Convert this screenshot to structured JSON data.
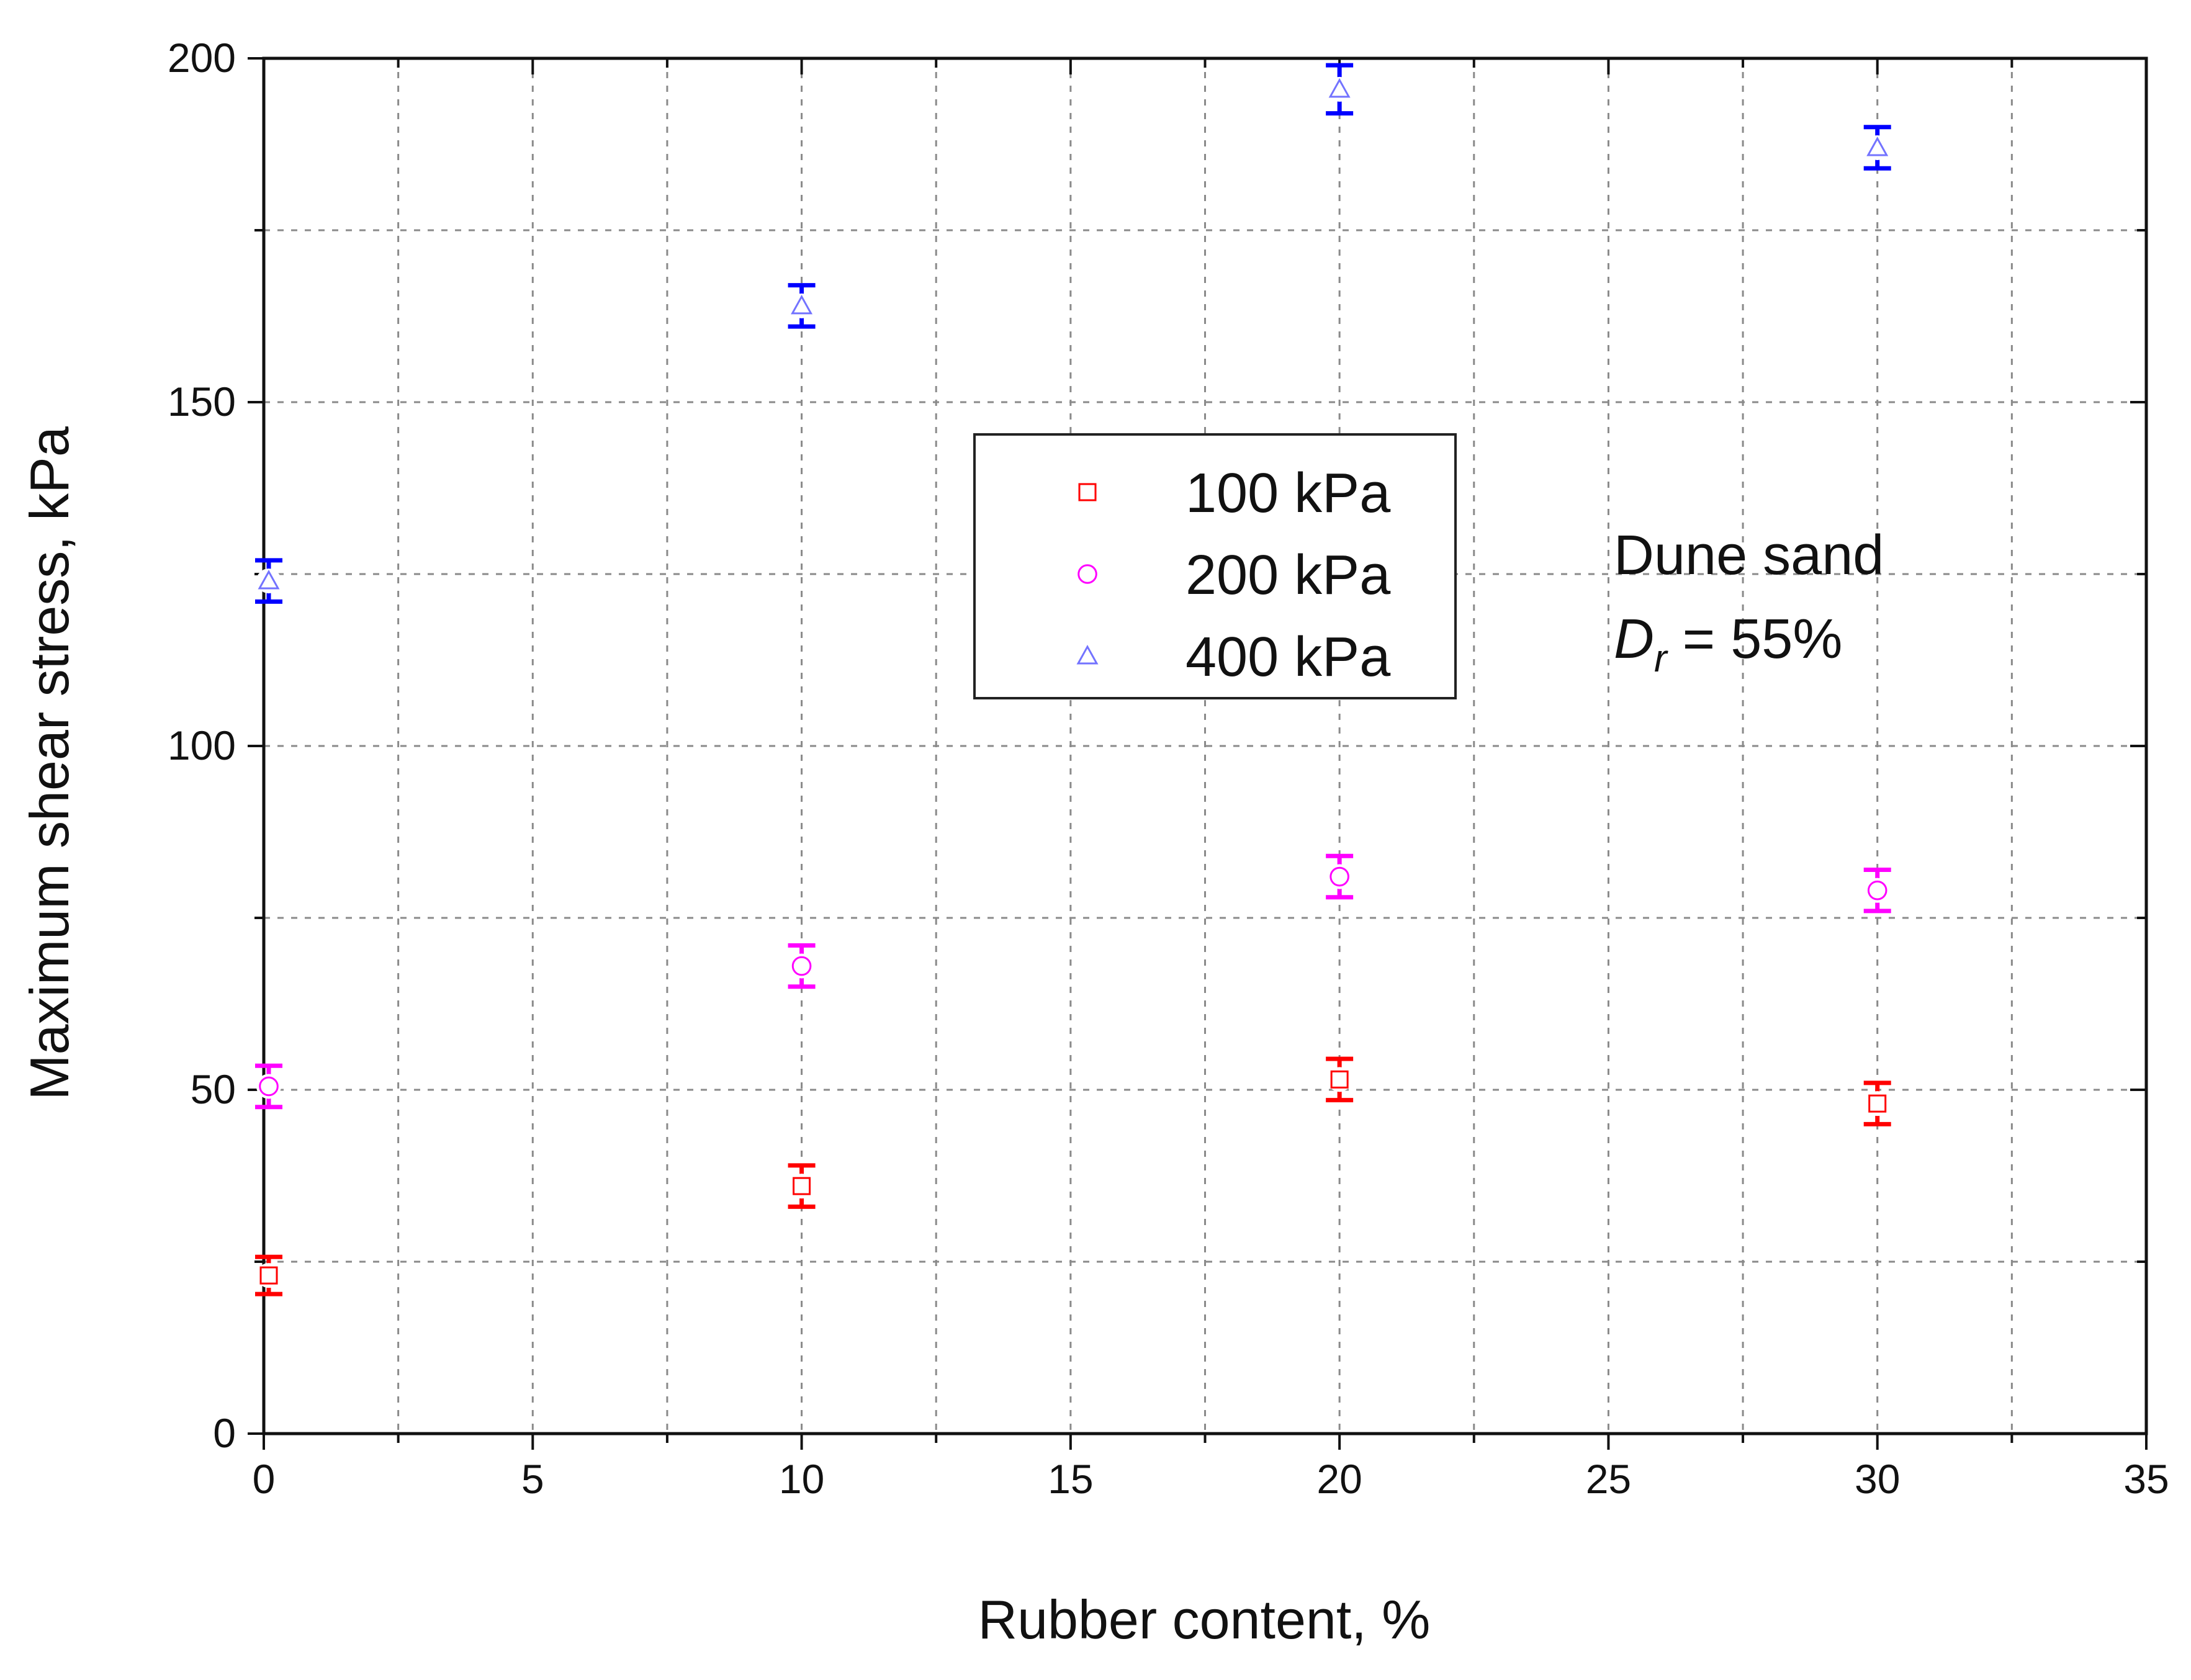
{
  "chart_data": {
    "type": "scatter",
    "xlabel": "Rubber content, %",
    "ylabel": "Maximum shear stress, kPa",
    "xlim": [
      0,
      35
    ],
    "ylim": [
      0,
      200
    ],
    "x_ticks": [
      "0",
      "5",
      "10",
      "15",
      "20",
      "25",
      "30",
      "35"
    ],
    "y_ticks": [
      "0",
      "50",
      "100",
      "150",
      "200"
    ],
    "grid": true,
    "legend_position": "upper-center",
    "series": [
      {
        "name": "100 kPa",
        "marker": "square-open",
        "color": "#ff0000",
        "x": [
          0,
          10,
          20,
          30
        ],
        "y": [
          23,
          36,
          51.5,
          48
        ],
        "error": [
          2.7,
          3,
          3,
          3
        ]
      },
      {
        "name": "200 kPa",
        "marker": "circle-open",
        "color": "#ff00ff",
        "x": [
          0,
          10,
          20,
          30
        ],
        "y": [
          50.5,
          68,
          81,
          79
        ],
        "error": [
          3,
          3,
          3,
          3
        ]
      },
      {
        "name": "400 kPa",
        "marker": "triangle-open",
        "color": "#0000ff",
        "x": [
          0,
          10,
          20,
          30
        ],
        "y": [
          124,
          164,
          195.5,
          187
        ],
        "error": [
          3,
          3,
          3.5,
          3
        ]
      }
    ],
    "annotation": {
      "line1": "Dune sand",
      "line2_main": "D",
      "line2_sub": "r",
      "line2_rest": " = 55%"
    }
  }
}
